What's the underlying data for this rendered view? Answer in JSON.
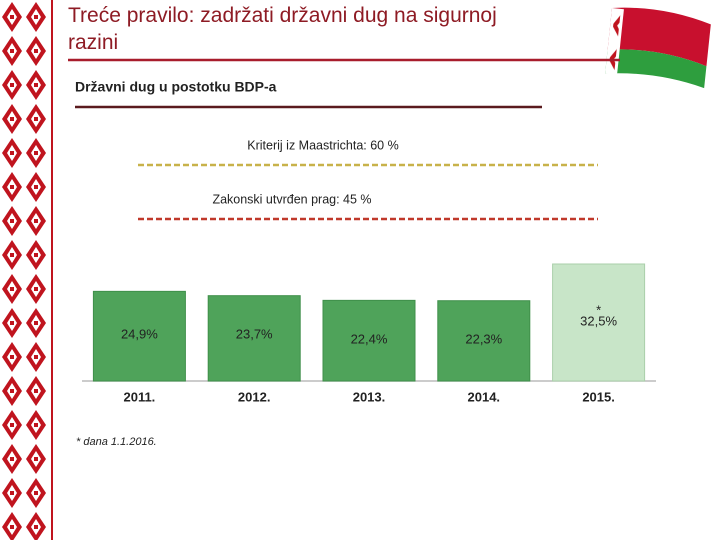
{
  "title": "Treće pravilo: zadržati državni dug na sigurnoj razini",
  "chart_data": {
    "type": "bar",
    "title": "Državni dug u postotku BDP-a",
    "categories": [
      "2011.",
      "2012.",
      "2013.",
      "2014.",
      "2015."
    ],
    "values": [
      24.9,
      23.7,
      22.4,
      22.3,
      32.5
    ],
    "value_labels": [
      "24,9%",
      "23,7%",
      "22,4%",
      "22,3%",
      "32,5%"
    ],
    "colors": [
      "#4fa35a",
      "#4fa35a",
      "#4fa35a",
      "#4fa35a",
      "#c8e5c8"
    ],
    "reference_lines": [
      {
        "label": "Kriterij iz Maastrichta: 60 %",
        "value": 60,
        "color": "#c8b24a"
      },
      {
        "label": "Zakonski utvrđen prag: 45 %",
        "value": 45,
        "color": "#c0392b"
      }
    ],
    "footnote": {
      "marker": "*",
      "text": "* dana 1.1.2016."
    }
  }
}
